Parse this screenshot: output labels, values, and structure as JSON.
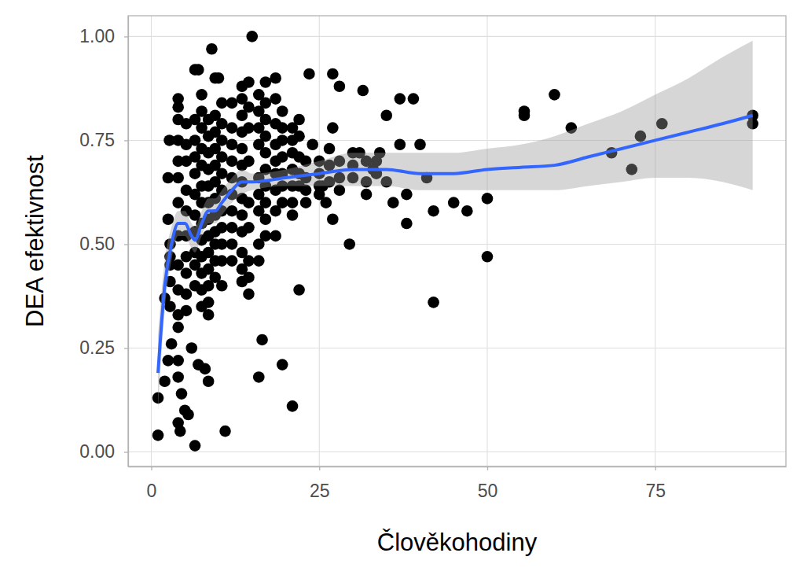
{
  "chart_data": {
    "type": "scatter",
    "x_label": "Člověkohodiny",
    "y_label": "DEA efektivnost",
    "xlim": [
      -3.45,
      94.45
    ],
    "ylim": [
      -0.035,
      1.05
    ],
    "xticks": [
      0,
      25,
      50,
      75
    ],
    "yticks": [
      {
        "value": 0,
        "label": "0.00"
      },
      {
        "value": 0.25,
        "label": "0.25"
      },
      {
        "value": 0.5,
        "label": "0.50"
      },
      {
        "value": 0.75,
        "label": "0.75"
      },
      {
        "value": 1,
        "label": "1.00"
      }
    ],
    "grid": true,
    "series": [
      {
        "type": "scatter",
        "marker": "circle",
        "color": "#000000",
        "x": [
          15,
          9,
          7,
          6.5,
          10,
          27,
          23.5,
          28,
          31.5,
          39,
          37,
          35,
          60,
          55.5,
          55.5,
          62.5,
          68.5,
          71.5,
          72.8,
          76,
          89.5,
          89.5,
          50,
          50,
          47,
          45,
          42,
          42,
          41,
          40,
          38,
          38,
          36,
          37,
          34,
          33,
          32,
          31,
          30,
          29.5,
          27,
          27,
          25,
          26,
          25.5,
          24,
          22,
          21,
          19.5,
          16.5,
          16,
          11,
          6.5,
          1,
          1,
          2,
          2.5,
          3,
          4,
          4.3,
          5,
          4.5,
          5.5,
          2,
          2.5,
          2.5,
          2.7,
          7,
          8,
          8.5,
          6,
          4,
          4,
          4,
          4,
          4,
          4,
          4,
          4,
          4,
          4,
          4,
          4,
          4,
          4,
          5.2,
          5.2,
          5.2,
          5.2,
          5.2,
          5.2,
          5.2,
          5.2,
          5.2,
          5.2,
          6.5,
          6.5,
          6.5,
          6.5,
          6.5,
          6.5,
          6.5,
          6.5,
          6.5,
          6.5,
          7.5,
          7.5,
          7.5,
          7.5,
          7.5,
          7.5,
          7.5,
          7.5,
          7.5,
          7.5,
          7.5,
          7.5,
          7.5,
          8.5,
          8.5,
          8.5,
          8.5,
          8.5,
          8.5,
          8.5,
          8.5,
          8.5,
          8.5,
          8.5,
          8.5,
          8.5,
          9.5,
          9.5,
          9.5,
          9.5,
          9.5,
          9.5,
          9.5,
          9.5,
          9.5,
          9.5,
          9.5,
          9.5,
          10.5,
          10.5,
          10.5,
          10.5,
          10.5,
          10.5,
          10.5,
          10.5,
          10.5,
          10.5,
          10.5,
          12,
          12,
          12,
          12,
          12,
          12,
          12,
          12,
          12,
          12,
          13.5,
          13.5,
          13.5,
          13.5,
          13.5,
          13.5,
          13.5,
          13.5,
          13.5,
          13.5,
          13.5,
          13.5,
          13.5,
          14.5,
          14.5,
          14.5,
          14.5,
          14.5,
          14.5,
          14.5,
          14.5,
          14.5,
          16,
          16,
          16,
          16,
          16,
          16,
          16,
          16,
          16,
          17,
          17,
          17,
          17,
          17,
          17,
          17,
          17,
          17,
          17,
          18.5,
          18.5,
          18.5,
          18.5,
          18.5,
          18.5,
          18.5,
          18.5,
          18.5,
          19.5,
          19.5,
          19.5,
          19.5,
          19.5,
          19.5,
          19.5,
          21,
          21,
          21,
          21,
          21,
          21,
          21,
          22,
          22,
          22,
          22,
          22,
          23,
          23,
          23,
          23,
          25,
          25,
          25,
          26.5,
          26.5,
          26.5,
          28,
          28,
          28,
          30,
          30,
          32,
          32,
          33.5,
          33.5,
          35,
          2.8,
          2.8,
          2.8,
          2.8,
          2.8
        ],
        "values": [
          1.0,
          0.97,
          0.92,
          0.92,
          0.9,
          0.91,
          0.91,
          0.88,
          0.87,
          0.85,
          0.85,
          0.81,
          0.86,
          0.82,
          0.81,
          0.78,
          0.72,
          0.68,
          0.76,
          0.79,
          0.81,
          0.79,
          0.47,
          0.61,
          0.58,
          0.6,
          0.36,
          0.58,
          0.66,
          0.74,
          0.62,
          0.55,
          0.6,
          0.74,
          0.72,
          0.68,
          0.7,
          0.72,
          0.72,
          0.5,
          0.78,
          0.56,
          0.62,
          0.6,
          0.64,
          0.74,
          0.39,
          0.11,
          0.21,
          0.27,
          0.18,
          0.05,
          0.015,
          0.04,
          0.13,
          0.17,
          0.22,
          0.26,
          0.07,
          0.05,
          0.1,
          0.14,
          0.09,
          0.37,
          0.56,
          0.66,
          0.75,
          0.21,
          0.2,
          0.17,
          0.25,
          0.85,
          0.83,
          0.8,
          0.75,
          0.7,
          0.66,
          0.6,
          0.52,
          0.45,
          0.39,
          0.33,
          0.3,
          0.22,
          0.18,
          0.79,
          0.74,
          0.7,
          0.63,
          0.58,
          0.52,
          0.47,
          0.43,
          0.38,
          0.34,
          0.8,
          0.75,
          0.71,
          0.67,
          0.62,
          0.57,
          0.53,
          0.48,
          0.45,
          0.4,
          0.86,
          0.82,
          0.78,
          0.73,
          0.69,
          0.64,
          0.6,
          0.55,
          0.51,
          0.47,
          0.43,
          0.39,
          0.35,
          0.8,
          0.76,
          0.72,
          0.68,
          0.64,
          0.6,
          0.56,
          0.52,
          0.48,
          0.44,
          0.4,
          0.36,
          0.33,
          0.9,
          0.81,
          0.77,
          0.73,
          0.69,
          0.65,
          0.61,
          0.57,
          0.53,
          0.5,
          0.46,
          0.42,
          0.84,
          0.79,
          0.75,
          0.71,
          0.67,
          0.63,
          0.58,
          0.54,
          0.5,
          0.46,
          0.4,
          0.84,
          0.78,
          0.74,
          0.7,
          0.66,
          0.62,
          0.58,
          0.54,
          0.5,
          0.46,
          0.88,
          0.85,
          0.81,
          0.77,
          0.73,
          0.69,
          0.65,
          0.61,
          0.57,
          0.53,
          0.48,
          0.44,
          0.41,
          0.89,
          0.83,
          0.78,
          0.7,
          0.6,
          0.54,
          0.46,
          0.42,
          0.38,
          0.86,
          0.82,
          0.78,
          0.74,
          0.66,
          0.62,
          0.58,
          0.5,
          0.46,
          0.89,
          0.84,
          0.8,
          0.76,
          0.72,
          0.68,
          0.64,
          0.6,
          0.56,
          0.52,
          0.9,
          0.85,
          0.79,
          0.74,
          0.7,
          0.67,
          0.63,
          0.58,
          0.52,
          0.82,
          0.78,
          0.75,
          0.71,
          0.67,
          0.64,
          0.6,
          0.78,
          0.75,
          0.72,
          0.68,
          0.64,
          0.6,
          0.57,
          0.8,
          0.76,
          0.71,
          0.67,
          0.64,
          0.7,
          0.66,
          0.63,
          0.6,
          0.7,
          0.67,
          0.64,
          0.73,
          0.69,
          0.65,
          0.66,
          0.7,
          0.63,
          0.66,
          0.69,
          0.65,
          0.62,
          0.7,
          0.67,
          0.65,
          0.47,
          0.5,
          0.45,
          0.41,
          0.35
        ]
      },
      {
        "type": "line",
        "color": "#3366FF",
        "x": [
          1,
          2,
          3,
          4,
          5,
          6,
          6.5,
          7.5,
          8.5,
          9.5,
          10.5,
          12,
          13.5,
          15,
          20,
          25,
          30,
          35,
          40,
          45,
          50,
          55,
          60,
          65,
          70,
          75,
          80,
          85,
          89.5
        ],
        "values": [
          0.19,
          0.4,
          0.5,
          0.55,
          0.55,
          0.52,
          0.51,
          0.55,
          0.58,
          0.58,
          0.6,
          0.63,
          0.65,
          0.65,
          0.66,
          0.67,
          0.68,
          0.68,
          0.67,
          0.67,
          0.68,
          0.685,
          0.69,
          0.71,
          0.73,
          0.75,
          0.77,
          0.79,
          0.81
        ],
        "lower": [
          0.1,
          0.34,
          0.46,
          0.52,
          0.52,
          0.49,
          0.48,
          0.52,
          0.55,
          0.55,
          0.57,
          0.6,
          0.62,
          0.63,
          0.64,
          0.64,
          0.64,
          0.64,
          0.63,
          0.63,
          0.63,
          0.63,
          0.63,
          0.64,
          0.65,
          0.66,
          0.66,
          0.65,
          0.63
        ],
        "upper": [
          0.28,
          0.46,
          0.54,
          0.58,
          0.58,
          0.55,
          0.54,
          0.58,
          0.61,
          0.61,
          0.63,
          0.66,
          0.68,
          0.67,
          0.68,
          0.7,
          0.72,
          0.72,
          0.72,
          0.72,
          0.73,
          0.74,
          0.76,
          0.79,
          0.82,
          0.86,
          0.9,
          0.95,
          0.99
        ]
      }
    ]
  }
}
